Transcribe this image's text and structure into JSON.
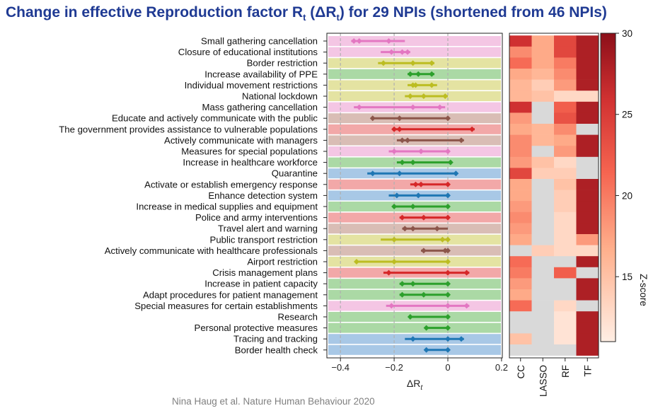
{
  "title": {
    "prefix": "Change in effective Reproduction factor R",
    "r_sub": "t",
    "mid": " (ΔR",
    "dr_sub": "t",
    "suffix": ") for 29 NPIs (shortened from 46 NPIs)"
  },
  "credit": "Nina Haug et al. Nature Human Behaviour 2020",
  "chart_data": [
    {
      "type": "forest",
      "xlabel": "ΔR",
      "xlabel_sub": "t",
      "xlim": [
        -0.45,
        0.2
      ],
      "xticks": [
        -0.4,
        -0.2,
        0,
        0.2
      ],
      "xtick_labels": [
        "−0.4",
        "−0.2",
        "0",
        "0.2"
      ],
      "grid": true,
      "category_colors": {
        "pink": "#e377c2",
        "olive": "#bcbd22",
        "green": "#2ca02c",
        "brown": "#8c564b",
        "red": "#d62728",
        "blue": "#1f77b4"
      },
      "rows": [
        {
          "label": "Small gathering cancellation",
          "cat": "pink",
          "lo": -0.36,
          "hi": -0.16,
          "points": [
            -0.35,
            -0.33,
            -0.22
          ]
        },
        {
          "label": "Closure of educational institutions",
          "cat": "pink",
          "lo": -0.25,
          "hi": -0.14,
          "points": [
            -0.21,
            -0.17,
            -0.15
          ]
        },
        {
          "label": "Border restriction",
          "cat": "olive",
          "lo": -0.26,
          "hi": -0.05,
          "points": [
            -0.24,
            -0.13,
            -0.06
          ]
        },
        {
          "label": "Increase availability of PPE",
          "cat": "green",
          "lo": -0.15,
          "hi": -0.05,
          "points": [
            -0.14,
            -0.11,
            -0.06
          ]
        },
        {
          "label": "Individual movement restrictions",
          "cat": "olive",
          "lo": -0.15,
          "hi": -0.04,
          "points": [
            -0.13,
            -0.12,
            -0.06
          ]
        },
        {
          "label": "National lockdown",
          "cat": "olive",
          "lo": -0.16,
          "hi": 0.0,
          "points": [
            -0.14,
            -0.09,
            -0.01
          ]
        },
        {
          "label": "Mass gathering cancellation",
          "cat": "pink",
          "lo": -0.35,
          "hi": -0.01,
          "points": [
            -0.33,
            -0.13,
            -0.03
          ]
        },
        {
          "label": "Educate and actively communicate with the public",
          "cat": "brown",
          "lo": -0.28,
          "hi": 0.0,
          "points": [
            -0.28,
            -0.18,
            0.0
          ]
        },
        {
          "label": "The government provides assistance to vulnerable populations",
          "cat": "red",
          "lo": -0.2,
          "hi": 0.1,
          "points": [
            -0.2,
            -0.18,
            0.09
          ]
        },
        {
          "label": "Actively communicate with managers",
          "cat": "brown",
          "lo": -0.19,
          "hi": 0.06,
          "points": [
            -0.17,
            -0.15,
            0.05
          ]
        },
        {
          "label": "Measures for special populations",
          "cat": "pink",
          "lo": -0.22,
          "hi": 0.0,
          "points": [
            -0.2,
            -0.1,
            0.0
          ]
        },
        {
          "label": "Increase in healthcare workforce",
          "cat": "green",
          "lo": -0.19,
          "hi": 0.01,
          "points": [
            -0.17,
            -0.13,
            0.01
          ]
        },
        {
          "label": "Quarantine",
          "cat": "blue",
          "lo": -0.3,
          "hi": 0.03,
          "points": [
            -0.28,
            -0.18,
            0.03
          ]
        },
        {
          "label": "Activate or establish emergency response",
          "cat": "red",
          "lo": -0.14,
          "hi": 0.0,
          "points": [
            -0.12,
            -0.1,
            0.0
          ]
        },
        {
          "label": "Enhance detection system",
          "cat": "blue",
          "lo": -0.22,
          "hi": 0.0,
          "points": [
            -0.19,
            -0.11,
            0.0
          ]
        },
        {
          "label": "Increase in medical supplies and equipment",
          "cat": "green",
          "lo": -0.2,
          "hi": 0.0,
          "points": [
            -0.2,
            -0.13,
            0.0
          ]
        },
        {
          "label": "Police and army interventions",
          "cat": "red",
          "lo": -0.18,
          "hi": 0.0,
          "points": [
            -0.17,
            -0.09,
            0.0
          ]
        },
        {
          "label": "Travel alert and warning",
          "cat": "brown",
          "lo": -0.17,
          "hi": 0.0,
          "points": [
            -0.16,
            -0.13,
            -0.04
          ]
        },
        {
          "label": "Public transport restriction",
          "cat": "olive",
          "lo": -0.25,
          "hi": 0.0,
          "points": [
            -0.2,
            -0.02,
            0.0
          ]
        },
        {
          "label": "Actively communicate with healthcare professionals",
          "cat": "brown",
          "lo": -0.1,
          "hi": 0.0,
          "points": [
            -0.09,
            -0.01,
            0.0
          ]
        },
        {
          "label": "Airport restriction",
          "cat": "olive",
          "lo": -0.34,
          "hi": 0.0,
          "points": [
            -0.34,
            -0.2,
            0.0
          ]
        },
        {
          "label": "Crisis management plans",
          "cat": "red",
          "lo": -0.24,
          "hi": 0.08,
          "points": [
            -0.22,
            0.0,
            0.07
          ]
        },
        {
          "label": "Increase in patient capacity",
          "cat": "green",
          "lo": -0.18,
          "hi": 0.0,
          "points": [
            -0.17,
            -0.13,
            0.0
          ]
        },
        {
          "label": "Adapt procedures for patient management",
          "cat": "green",
          "lo": -0.18,
          "hi": 0.0,
          "points": [
            -0.17,
            -0.09,
            0.0
          ]
        },
        {
          "label": "Special measures for certain establishments",
          "cat": "pink",
          "lo": -0.23,
          "hi": 0.08,
          "points": [
            -0.21,
            0.0,
            0.07
          ]
        },
        {
          "label": "Research",
          "cat": "green",
          "lo": -0.14,
          "hi": 0.0,
          "points": [
            -0.14,
            0.0
          ]
        },
        {
          "label": "Personal protective measures",
          "cat": "green",
          "lo": -0.08,
          "hi": 0.0,
          "points": [
            -0.08,
            0.0
          ]
        },
        {
          "label": "Tracing and tracking",
          "cat": "blue",
          "lo": -0.16,
          "hi": 0.06,
          "points": [
            -0.13,
            0.0,
            0.05
          ]
        },
        {
          "label": "Border health check",
          "cat": "blue",
          "lo": -0.08,
          "hi": 0.0,
          "points": [
            -0.08,
            0.0
          ]
        }
      ]
    },
    {
      "type": "heatmap",
      "columns": [
        "CC",
        "LASSO",
        "RF",
        "TF"
      ],
      "colorbar_label": "Z-score",
      "colorbar_ticks": [
        15,
        20,
        25,
        30
      ],
      "zlim": [
        11,
        30
      ],
      "missing_color": "#d9d9d9",
      "values": [
        [
          26,
          17,
          24,
          28
        ],
        [
          19,
          17,
          24,
          28
        ],
        [
          21,
          17,
          20,
          28
        ],
        [
          17,
          16,
          19,
          28
        ],
        [
          16,
          14,
          18,
          28
        ],
        [
          16,
          15,
          13,
          13
        ],
        [
          26,
          null,
          22,
          28
        ],
        [
          18,
          null,
          23,
          28
        ],
        [
          17,
          16,
          19,
          null
        ],
        [
          19,
          16,
          17,
          28
        ],
        [
          19,
          null,
          18,
          28
        ],
        [
          18,
          15,
          13,
          null
        ],
        [
          24,
          14,
          14,
          null
        ],
        [
          17,
          null,
          15,
          28
        ],
        [
          17,
          null,
          14,
          28
        ],
        [
          18,
          null,
          14,
          28
        ],
        [
          19,
          null,
          13,
          28
        ],
        [
          18,
          null,
          13,
          28
        ],
        [
          17,
          null,
          13,
          18
        ],
        [
          null,
          14,
          13,
          13
        ],
        [
          21,
          null,
          null,
          28
        ],
        [
          20,
          null,
          22,
          null
        ],
        [
          18,
          null,
          null,
          28
        ],
        [
          17,
          null,
          null,
          28
        ],
        [
          21,
          null,
          13,
          null
        ],
        [
          null,
          null,
          12,
          28
        ],
        [
          null,
          null,
          12,
          28
        ],
        [
          15,
          null,
          12,
          28
        ],
        [
          null,
          null,
          null,
          28
        ]
      ]
    }
  ]
}
